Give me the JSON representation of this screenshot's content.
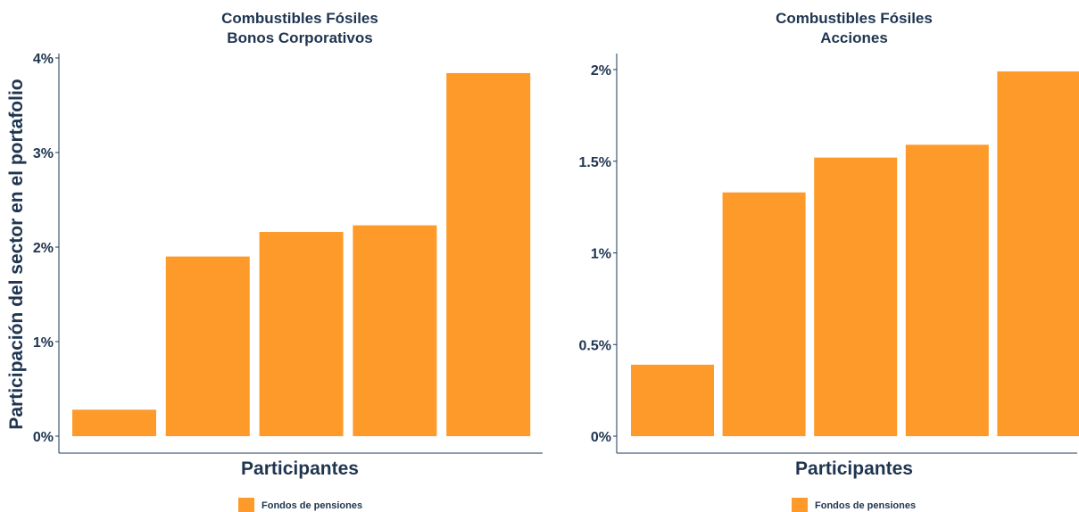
{
  "chart_data": [
    {
      "type": "bar",
      "title_lines": [
        "Combustibles Fósiles",
        "Bonos Corporativos"
      ],
      "xlabel": "Participantes",
      "ylabel": "Participación del sector en el portafolio",
      "values": [
        0.28,
        1.9,
        2.16,
        2.23,
        3.84
      ],
      "ylim": [
        0,
        4
      ],
      "yticks": [
        0,
        1,
        2,
        3,
        4
      ],
      "ytick_labels": [
        "0%",
        "1%",
        "2%",
        "3%",
        "4%"
      ],
      "series_name": "Fondos de pensiones",
      "color": "#fd9a2a",
      "legend_position": "bottom"
    },
    {
      "type": "bar",
      "title_lines": [
        "Combustibles Fósiles",
        "Acciones"
      ],
      "xlabel": "Participantes",
      "ylabel": "",
      "values": [
        0.39,
        1.33,
        1.52,
        1.59,
        1.99
      ],
      "ylim": [
        0,
        2
      ],
      "yticks": [
        0,
        0.5,
        1,
        1.5,
        2
      ],
      "ytick_labels": [
        "0%",
        "0.5%",
        "1%",
        "1.5%",
        "2%"
      ],
      "series_name": "Fondos de pensiones",
      "color": "#fd9a2a",
      "legend_position": "bottom"
    }
  ]
}
